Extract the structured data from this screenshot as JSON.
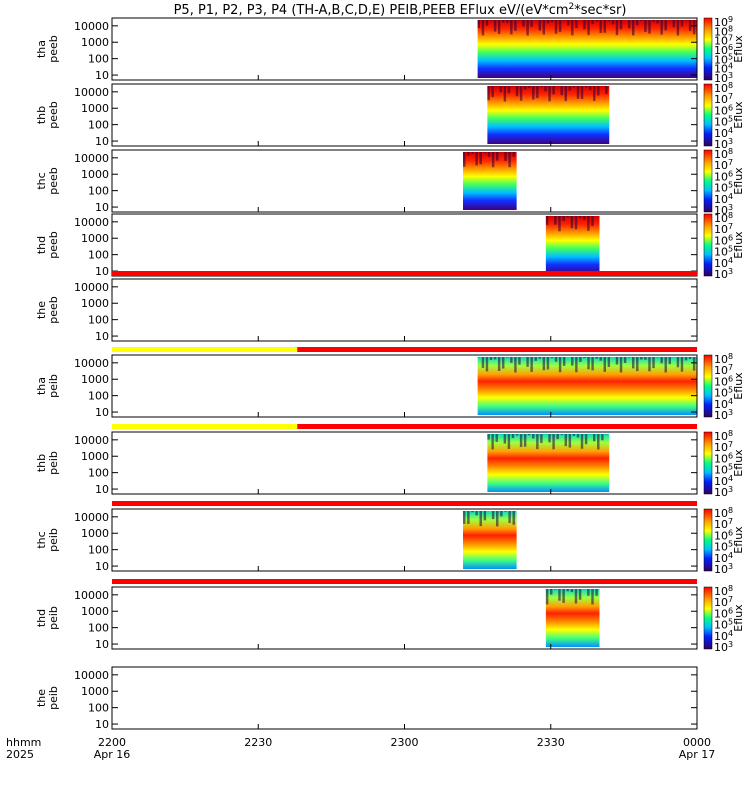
{
  "title": "P5, P1, P2, P3, P4 (TH-A,B,C,D,E) PEIB,PEEB EFlux eV/(eV*cm",
  "title_sup": "2",
  "title_end": "*sec*sr)",
  "xaxis": {
    "label_top": "hhmm",
    "label_bottom": "2025",
    "ticks": [
      {
        "t": 0,
        "label": "2200",
        "sub": "Apr 16"
      },
      {
        "t": 30,
        "label": "2230",
        "sub": ""
      },
      {
        "t": 60,
        "label": "2300",
        "sub": ""
      },
      {
        "t": 90,
        "label": "2330",
        "sub": ""
      },
      {
        "t": 120,
        "label": "0000",
        "sub": "Apr 17"
      }
    ]
  },
  "yticks": [
    "10000",
    "1000",
    "100",
    "10"
  ],
  "colorbar_title": "Eflux",
  "status_colors": {
    "red": "#ff0000",
    "yellow": "#ffff00"
  },
  "chart_data": {
    "type": "heatmap",
    "x_unit": "minutes after 2200 UT Apr 16 2025",
    "xlim": [
      0,
      120
    ],
    "y_scale": "log",
    "ylim": [
      5,
      30000
    ],
    "panels": [
      {
        "probe": "tha",
        "product": "peeb",
        "label1": "tha",
        "label2": "peeb",
        "data_start": 75,
        "data_end": 120,
        "cb_labels": [
          "10^9",
          "10^8",
          "10^7",
          "10^6",
          "10^5",
          "10^4",
          "10^3"
        ],
        "status": []
      },
      {
        "probe": "thb",
        "product": "peeb",
        "label1": "thb",
        "label2": "peeb",
        "data_start": 77,
        "data_end": 102,
        "cb_labels": [
          "10^8",
          "10^7",
          "10^6",
          "10^5",
          "10^4",
          "10^3"
        ],
        "status": []
      },
      {
        "probe": "thc",
        "product": "peeb",
        "label1": "thc",
        "label2": "peeb",
        "data_start": 72,
        "data_end": 83,
        "cb_labels": [
          "10^8",
          "10^7",
          "10^6",
          "10^5",
          "10^4",
          "10^3"
        ],
        "status": []
      },
      {
        "probe": "thd",
        "product": "peeb",
        "label1": "thd",
        "label2": "peeb",
        "data_start": 89,
        "data_end": 100,
        "cb_labels": [
          "10^8",
          "10^7",
          "10^6",
          "10^5",
          "10^4",
          "10^3"
        ],
        "status": []
      },
      {
        "probe": "the",
        "product": "peeb",
        "label1": "the",
        "label2": "peeb",
        "data_start": null,
        "data_end": null,
        "cb_labels": [],
        "status": [
          {
            "from": 0,
            "to": 120,
            "color": "red"
          }
        ]
      },
      {
        "probe": "tha",
        "product": "peib",
        "label1": "tha",
        "label2": "peib",
        "data_start": 75,
        "data_end": 120,
        "cb_labels": [
          "10^8",
          "10^7",
          "10^6",
          "10^5",
          "10^4",
          "10^3"
        ],
        "status": [
          {
            "from": 0,
            "to": 38,
            "color": "yellow"
          },
          {
            "from": 38,
            "to": 120,
            "color": "red"
          }
        ]
      },
      {
        "probe": "thb",
        "product": "peib",
        "label1": "thb",
        "label2": "peib",
        "data_start": 77,
        "data_end": 102,
        "cb_labels": [
          "10^8",
          "10^7",
          "10^6",
          "10^5",
          "10^4",
          "10^3"
        ],
        "status": [
          {
            "from": 0,
            "to": 38,
            "color": "yellow"
          },
          {
            "from": 38,
            "to": 120,
            "color": "red"
          }
        ]
      },
      {
        "probe": "thc",
        "product": "peib",
        "label1": "thc",
        "label2": "peib",
        "data_start": 72,
        "data_end": 83,
        "cb_labels": [
          "10^8",
          "10^7",
          "10^6",
          "10^5",
          "10^4",
          "10^3"
        ],
        "status": [
          {
            "from": 0,
            "to": 120,
            "color": "red"
          }
        ]
      },
      {
        "probe": "thd",
        "product": "peib",
        "label1": "thd",
        "label2": "peib",
        "data_start": 89,
        "data_end": 100,
        "cb_labels": [
          "10^8",
          "10^7",
          "10^6",
          "10^5",
          "10^4",
          "10^3"
        ],
        "status": [
          {
            "from": 0,
            "to": 120,
            "color": "red"
          }
        ]
      },
      {
        "probe": "the",
        "product": "peib",
        "label1": "the",
        "label2": "peib",
        "data_start": null,
        "data_end": null,
        "cb_labels": [],
        "status": []
      }
    ]
  }
}
